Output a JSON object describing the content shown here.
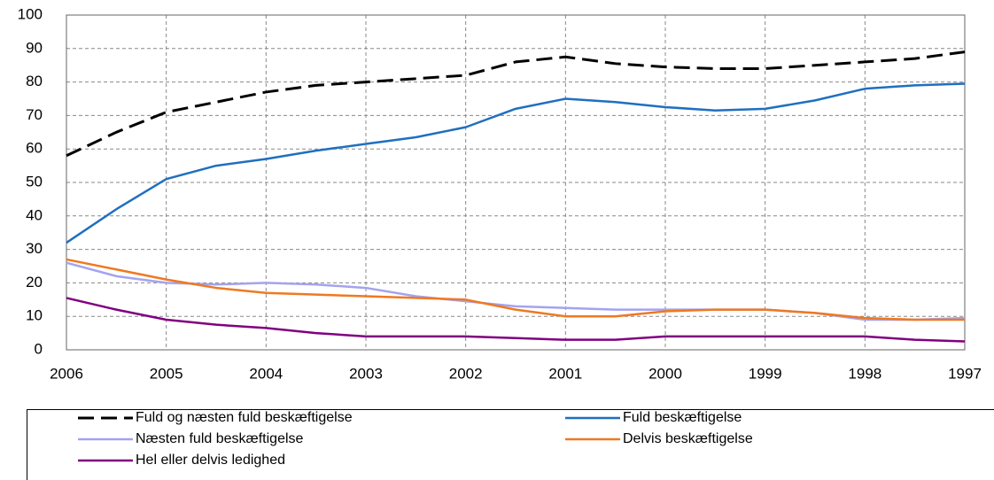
{
  "chart_data": {
    "type": "line",
    "categories": [
      "2006",
      null,
      "2005",
      null,
      "2004",
      null,
      "2003",
      null,
      "2002",
      null,
      "2001",
      null,
      "2000",
      null,
      "1999",
      null,
      "1998",
      null,
      "1997"
    ],
    "series": [
      {
        "name": "Fuld og næsten fuld beskæftigelse",
        "color": "#000000",
        "dashed": true,
        "values": [
          58,
          65,
          71,
          74,
          77,
          79,
          80,
          81,
          82,
          86,
          87.5,
          85.5,
          84.5,
          84,
          84,
          85,
          86,
          87,
          89
        ]
      },
      {
        "name": "Fuld beskæftigelse",
        "color": "#1f6fc0",
        "dashed": false,
        "values": [
          32,
          42,
          51,
          55,
          57,
          59.5,
          61.5,
          63.5,
          66.5,
          72,
          75,
          74,
          72.5,
          71.5,
          72,
          74.5,
          78,
          79,
          79.5
        ]
      },
      {
        "name": "Næsten fuld beskæftigelse",
        "color": "#a3a3f0",
        "dashed": false,
        "values": [
          26,
          22,
          20,
          19.5,
          20,
          19.5,
          18.5,
          16,
          14.5,
          13,
          12.5,
          12,
          12,
          12,
          12,
          11,
          9,
          9,
          9.5
        ]
      },
      {
        "name": "Delvis beskæftigelse",
        "color": "#f07820",
        "dashed": false,
        "values": [
          27,
          24,
          21,
          18.5,
          17,
          16.5,
          16,
          15.5,
          15,
          12,
          10,
          10,
          11.5,
          12,
          12,
          11,
          9.5,
          9,
          9
        ]
      },
      {
        "name": "Hel eller delvis ledighed",
        "color": "#800080",
        "dashed": false,
        "values": [
          15.5,
          12,
          9,
          7.5,
          6.5,
          5,
          4,
          4,
          4,
          3.5,
          3,
          3,
          4,
          4,
          4,
          4,
          4,
          3,
          2.5
        ]
      }
    ],
    "ylim": [
      0,
      100
    ],
    "yticks": [
      0,
      10,
      20,
      30,
      40,
      50,
      60,
      70,
      80,
      90,
      100
    ],
    "grid": true
  }
}
